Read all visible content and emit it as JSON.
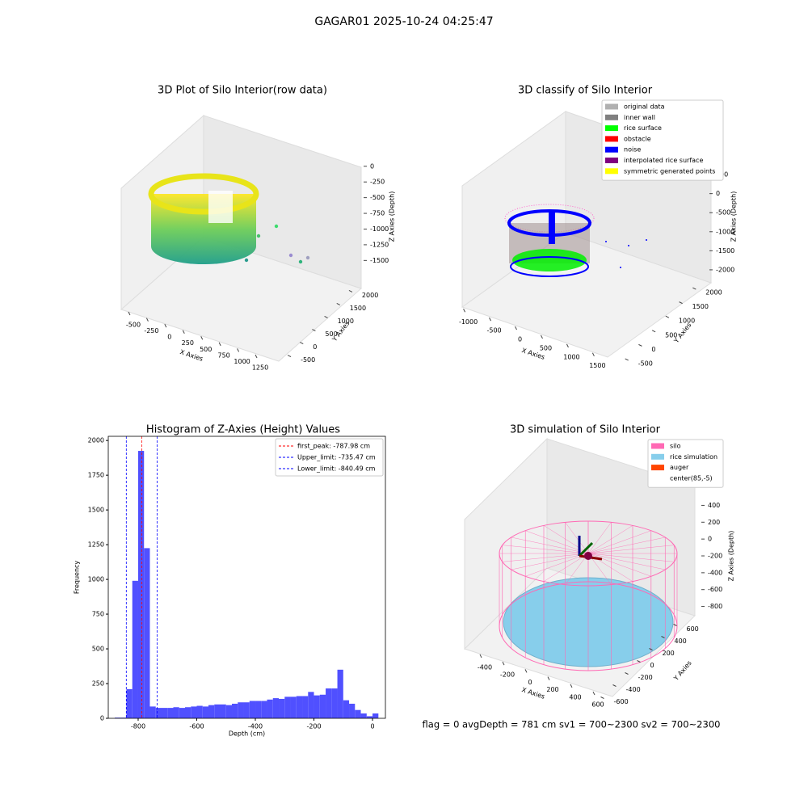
{
  "title": "GAGAR01 2025-10-24 04:25:47",
  "footer": "flag = 0     avgDepth = 781 cm  sv1 = 700~2300  sv2 = 700~2300",
  "chart_data": [
    {
      "type": "scatter3d",
      "title": "3D Plot of Silo Interior(row data)",
      "xlabel": "X Axies",
      "ylabel": "Y Axies",
      "zlabel": "Z Axies (Depth)",
      "xlim": [
        -600,
        1350
      ],
      "xticks": [
        -500,
        -250,
        0,
        250,
        500,
        750,
        1000,
        1250
      ],
      "ylim": [
        -700,
        2200
      ],
      "yticks": [
        -500,
        0,
        500,
        1000,
        1500,
        2000
      ],
      "zlim": [
        -1650,
        100
      ],
      "zticks": [
        0,
        -250,
        -500,
        -750,
        -1000,
        -1250,
        -1500
      ]
    },
    {
      "type": "scatter3d",
      "title": "3D classify of Silo Interior",
      "xlabel": "X Axies",
      "ylabel": "Y Axies",
      "zlabel": "Z Axies (Depth)",
      "xlim": [
        -1150,
        1650
      ],
      "xticks": [
        -1000,
        -500,
        0,
        500,
        1000,
        1500
      ],
      "ylim": [
        -700,
        2200
      ],
      "yticks": [
        -500,
        0,
        500,
        1000,
        1500,
        2000
      ],
      "zlim": [
        -2150,
        650
      ],
      "zticks": [
        500,
        0,
        -500,
        -1000,
        -1500,
        -2000
      ],
      "legend": [
        {
          "name": "original data",
          "color": "#b0b0b0"
        },
        {
          "name": "inner wall",
          "color": "#808080"
        },
        {
          "name": "rice surface",
          "color": "#00ff00"
        },
        {
          "name": "obstacle",
          "color": "#ff0000"
        },
        {
          "name": "noise",
          "color": "#0000ff"
        },
        {
          "name": "interpolated rice surface",
          "color": "#800080"
        },
        {
          "name": "symmetric generated points",
          "color": "#ffff00"
        }
      ]
    },
    {
      "type": "histogram",
      "title": "Histogram of Z-Axies (Height) Values",
      "xlabel": "Depth (cm)",
      "ylabel": "Frequency",
      "color": "#5050ff",
      "xlim": [
        -902,
        44
      ],
      "xticks": [
        -800,
        -600,
        -400,
        -200,
        0
      ],
      "ylim": [
        0,
        2030
      ],
      "yticks": [
        0,
        250,
        500,
        750,
        1000,
        1250,
        1500,
        1750,
        2000
      ],
      "bins": [
        -880,
        -860,
        -840,
        -820,
        -800,
        -780,
        -760,
        -740,
        -720,
        -700,
        -680,
        -660,
        -640,
        -620,
        -600,
        -580,
        -560,
        -540,
        -520,
        -500,
        -480,
        -460,
        -440,
        -420,
        -400,
        -380,
        -360,
        -340,
        -320,
        -300,
        -280,
        -260,
        -240,
        -220,
        -200,
        -180,
        -160,
        -140,
        -120,
        -100,
        -80,
        -60,
        -40,
        -20,
        0,
        20
      ],
      "values": [
        5,
        5,
        210,
        990,
        1925,
        1225,
        85,
        75,
        75,
        75,
        80,
        75,
        80,
        85,
        90,
        85,
        95,
        100,
        100,
        95,
        105,
        115,
        115,
        125,
        125,
        125,
        135,
        145,
        140,
        155,
        155,
        160,
        160,
        190,
        165,
        170,
        215,
        215,
        350,
        130,
        105,
        60,
        35,
        15,
        35
      ],
      "legend_position": "upper right",
      "vlines": [
        {
          "label": "first_peak: -787.98 cm",
          "value": -787.98,
          "color": "#ff0000"
        },
        {
          "label": "Upper_limit: -735.47 cm",
          "value": -735.47,
          "color": "#0000ff"
        },
        {
          "label": "Lower_limit: -840.49 cm",
          "value": -840.49,
          "color": "#0000ff"
        }
      ]
    },
    {
      "type": "scatter3d",
      "title": "3D simulation of Silo Interior",
      "xlabel": "X Axies",
      "ylabel": "Y Axies",
      "zlabel": "Z Axies (Depth)",
      "xlim": [
        -550,
        750
      ],
      "xticks": [
        -400,
        -200,
        0,
        200,
        400,
        600
      ],
      "ylim": [
        -700,
        700
      ],
      "yticks": [
        -600,
        -400,
        -200,
        0,
        200,
        400,
        600
      ],
      "zlim": [
        -900,
        500
      ],
      "zticks": [
        400,
        200,
        0,
        -200,
        -400,
        -600,
        -800
      ],
      "legend": [
        {
          "name": "silo",
          "color": "#ff69b4"
        },
        {
          "name": "rice simulation",
          "color": "#87ceeb"
        },
        {
          "name": "auger",
          "color": "#ff4500"
        },
        {
          "name": "center(85,-5)",
          "color": "none"
        }
      ]
    }
  ]
}
